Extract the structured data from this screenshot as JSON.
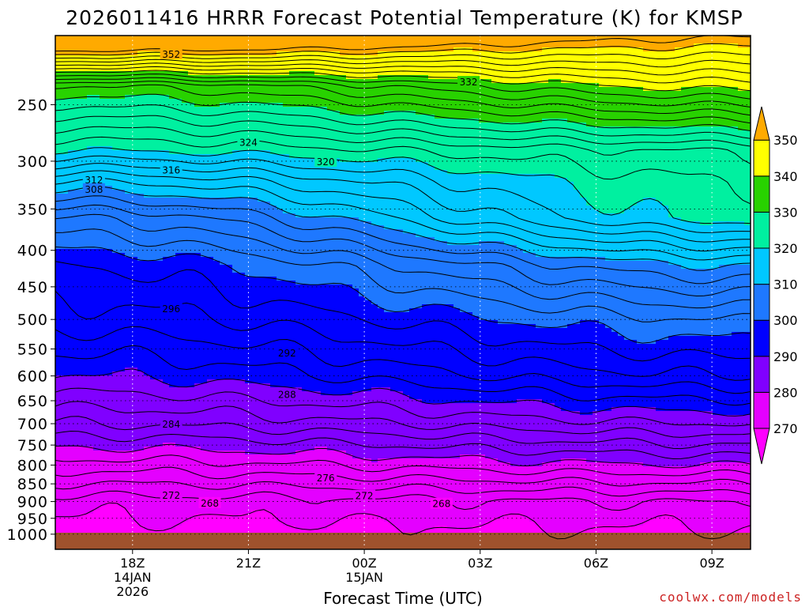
{
  "chart_data": {
    "type": "contour",
    "title": "2026011416 HRRR Forecast Potential Temperature (K) for KMSP",
    "xlabel": "Forecast Time (UTC)",
    "ylabel": "",
    "x_ticks": [
      {
        "hour": 18,
        "label": "18Z",
        "sub1": "14JAN",
        "sub2": "2026"
      },
      {
        "hour": 21,
        "label": "21Z",
        "sub1": "",
        "sub2": ""
      },
      {
        "hour": 24,
        "label": "00Z",
        "sub1": "15JAN",
        "sub2": ""
      },
      {
        "hour": 27,
        "label": "03Z",
        "sub1": "",
        "sub2": ""
      },
      {
        "hour": 30,
        "label": "06Z",
        "sub1": "",
        "sub2": ""
      },
      {
        "hour": 33,
        "label": "09Z",
        "sub1": "",
        "sub2": ""
      }
    ],
    "x_range_hours": [
      16,
      34
    ],
    "y_axis_scale": "log pressure (hPa, inverted)",
    "y_range_hpa": [
      1050,
      200
    ],
    "y_ticks": [
      250,
      300,
      350,
      400,
      450,
      500,
      550,
      600,
      650,
      700,
      750,
      800,
      850,
      900,
      950,
      1000
    ],
    "colorbar": {
      "levels": [
        270,
        280,
        290,
        300,
        310,
        320,
        330,
        340,
        350
      ],
      "colors": [
        "#ff00ff",
        "#e400ff",
        "#8000ff",
        "#0000ff",
        "#1e78ff",
        "#00c8ff",
        "#00f0a0",
        "#28d200",
        "#ffff00",
        "#ffaa00"
      ]
    },
    "ground_color": "#a0522d",
    "contour_interval": 2,
    "grid": "dotted",
    "contour_labels": [
      {
        "value": 352,
        "hour": 19.0,
        "hpa": 212
      },
      {
        "value": 332,
        "hour": 26.7,
        "hpa": 232
      },
      {
        "value": 324,
        "hour": 21.0,
        "hpa": 282
      },
      {
        "value": 320,
        "hour": 23.0,
        "hpa": 300
      },
      {
        "value": 316,
        "hour": 19.0,
        "hpa": 308
      },
      {
        "value": 312,
        "hour": 17.0,
        "hpa": 318
      },
      {
        "value": 308,
        "hour": 17.0,
        "hpa": 328
      },
      {
        "value": 296,
        "hour": 19.0,
        "hpa": 482
      },
      {
        "value": 292,
        "hour": 22.0,
        "hpa": 556
      },
      {
        "value": 288,
        "hour": 22.0,
        "hpa": 636
      },
      {
        "value": 284,
        "hour": 19.0,
        "hpa": 700
      },
      {
        "value": 276,
        "hour": 23.0,
        "hpa": 832
      },
      {
        "value": 272,
        "hour": 19.0,
        "hpa": 880
      },
      {
        "value": 272,
        "hour": 24.0,
        "hpa": 882
      },
      {
        "value": 268,
        "hour": 20.0,
        "hpa": 903
      },
      {
        "value": 268,
        "hour": 26.0,
        "hpa": 905
      }
    ]
  },
  "watermark": "coolwx.com/models"
}
